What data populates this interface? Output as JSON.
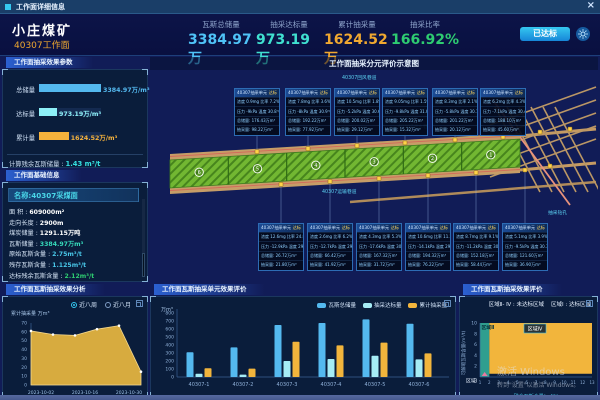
{
  "titlebar": {
    "title": "工作面详细信息",
    "close": "×"
  },
  "header": {
    "mine_name": "小庄煤矿",
    "face_name": "40307工作面",
    "kpis": [
      {
        "label": "瓦斯总储量",
        "value": "3384.97万",
        "color": "#4fc3f7"
      },
      {
        "label": "抽采达标量",
        "value": "973.19万",
        "color": "#40e0d0"
      },
      {
        "label": "累计抽采量",
        "value": "1624.52万",
        "color": "#f0a830"
      },
      {
        "label": "抽采比率",
        "value": "166.92%",
        "color": "#2ecc71"
      }
    ],
    "status_button": "已达标"
  },
  "params_panel": {
    "title": "工作面抽采效果参数",
    "bars": [
      {
        "label": "总储量",
        "value": "3384.97万/m³",
        "color": "#54b9ef",
        "pct": 100
      },
      {
        "label": "达标量",
        "value": "973.19万/m³",
        "color": "#8ef0f7",
        "pct": 29
      },
      {
        "label": "累计量",
        "value": "1624.52万/m³",
        "color": "#f5b23c",
        "pct": 48
      }
    ],
    "footer_label": "计算残余瓦斯储量 : ",
    "footer_value": "1.43 m³/t"
  },
  "info_panel": {
    "title": "工作面基础信息",
    "name": "名称:40307采煤面",
    "rows": [
      {
        "label": "面  积",
        "value": "609000m²",
        "color": "#ffffff"
      },
      {
        "label": "走向长度",
        "value": "2900m",
        "color": "#ffffff"
      },
      {
        "label": "煤炭储量",
        "value": "1291.15万吨",
        "color": "#ffffff"
      },
      {
        "label": "瓦斯储量",
        "value": "3384.97万m³",
        "color": "#35d8b9"
      },
      {
        "label": "原始瓦斯含量",
        "value": "2.75m³/t",
        "color": "#49c7e8"
      },
      {
        "label": "残存瓦斯含量",
        "value": "1.125m³/t",
        "color": "#49c7e8"
      },
      {
        "label": "达标残余瓦斯含量",
        "value": "2.12m³/t",
        "color": "#2ecc71"
      }
    ]
  },
  "trend_panel": {
    "title": "工作面瓦斯抽采效果分析",
    "radios": [
      {
        "label": "近八周",
        "selected": true
      },
      {
        "label": "近八月",
        "selected": false
      }
    ]
  },
  "diagram": {
    "title": "工作面抽采分元评价示意图",
    "labels": {
      "return_airway": "40307回风巷道",
      "drain_roadway": "40307泄水巷",
      "transport_roadway": "40307运输巷道",
      "drill_holes": "抽采钻孔"
    },
    "sections": [
      "6",
      "5",
      "4",
      "3",
      "2",
      "1"
    ],
    "cards_top": [
      {
        "title": "40307抽采单元",
        "tag": "达标",
        "rows": [
          "浓度 0.9mg 比率 7.2%",
          "压力 -9kPa 温度 30.8℃",
          "总储量: 176.43万m³",
          "抽采量: 98.22万m³"
        ]
      },
      {
        "title": "40307抽采单元",
        "tag": "达标",
        "rows": [
          "浓度 7.8mg 比率 3.6%",
          "压力 -8kPa 温度 30.9℃",
          "总储量: 192.22万m³",
          "抽采量: 77.92万m³"
        ]
      },
      {
        "title": "40307抽采单元",
        "tag": "达标",
        "rows": [
          "浓度 10.5mg 比率 1.8%",
          "压力 -5.2kPa 温度 30.6℃",
          "总储量: 200.02万m³",
          "抽采量: 29.12万m³"
        ]
      },
      {
        "title": "40307抽采单元",
        "tag": "达标",
        "rows": [
          "浓度 9.05mg 比率 1.5%",
          "压力 -9.8kPa 温度 31.0℃",
          "总储量: 205.22万m³",
          "抽采量: 15.32万m³"
        ]
      },
      {
        "title": "40307抽采单元",
        "tag": "达标",
        "rows": [
          "浓度 8.3mg 比率 2.1%",
          "压力 -5.8kPa 温度 30.1℃",
          "总储量: 201.22万m³",
          "抽采量: 20.12万m³"
        ]
      },
      {
        "title": "40307抽采单元",
        "tag": "达标",
        "rows": [
          "浓度 6.2mg 比率 4.3%",
          "压力 -7.1kPa 温度 30.4℃",
          "总储量: 188.10万m³",
          "抽采量: 45.60万m³"
        ]
      }
    ],
    "cards_bottom": [
      {
        "title": "40307抽采单元",
        "tag": "达标",
        "rows": [
          "浓度 12.6mg 比率 24.8%",
          "压力 -12.9kPa 温度 29.6℃",
          "总储量: 26.72万m³",
          "抽采量: 21.80万m³"
        ]
      },
      {
        "title": "40307抽采单元",
        "tag": "达标",
        "rows": [
          "浓度 2.6mg 比率 6.2%",
          "压力 -12.7kPa 温度 29.8℃",
          "总储量: 66.42万m³",
          "抽采量: 41.92万m³"
        ]
      },
      {
        "title": "40307抽采单元",
        "tag": "达标",
        "rows": [
          "浓度 4.3mg 比率 5.3%",
          "压力 -17.6kPa 温度 30.2℃",
          "总储量: 167.32万m³",
          "抽采量: 31.72万m³"
        ]
      },
      {
        "title": "40307抽采单元",
        "tag": "达标",
        "rows": [
          "浓度 10.6mg 比率 11.2%",
          "压力 -14.1kPa 温度 29.9℃",
          "总储量: 194.32万m³",
          "抽采量: 76.22万m³"
        ]
      },
      {
        "title": "40307抽采单元",
        "tag": "达标",
        "rows": [
          "浓度 8.7mg 比率 9.1%",
          "压力 -11.2kPa 温度 30.0℃",
          "总储量: 152.18万m³",
          "抽采量: 58.44万m³"
        ]
      },
      {
        "title": "40307抽采单元",
        "tag": "达标",
        "rows": [
          "浓度 5.1mg 比率 3.9%",
          "压力 -9.5kPa 温度 30.3℃",
          "总储量: 121.60万m³",
          "抽采量: 36.90万m³"
        ]
      }
    ]
  },
  "units_panel": {
    "title": "工作面瓦斯抽采单元效果评价"
  },
  "eval_panel": {
    "title": "工作面瓦斯抽采效果评价",
    "legend_a": "区域Ⅱ- Ⅳ : 未达标区域",
    "legend_b": "区域Ⅰ : 达标区域"
  },
  "watermark": {
    "line1": "激活 Windows",
    "line2": "转到\"设置\"以激活 Windows。"
  },
  "chart_data": [
    {
      "id": "trend",
      "type": "area",
      "title": "工作面瓦斯抽采效果分析",
      "ylabel": "累计抽采量 万m³",
      "x": [
        "2023-10-02",
        "2023-10-09",
        "2023-10-16",
        "2023-10-23",
        "2023-10-30",
        "2023-11-06"
      ],
      "tick_indices": [
        0,
        2,
        4
      ],
      "xticks": [
        "2023-10-02",
        "2023-10-16",
        "2023-10-30"
      ],
      "values": [
        61,
        57,
        56,
        63,
        67,
        15
      ],
      "ylim": [
        0,
        70
      ],
      "yticks": [
        0,
        10,
        20,
        30,
        40,
        50,
        60,
        70
      ],
      "color": "#e9b740"
    },
    {
      "id": "units",
      "type": "bar",
      "title": "工作面瓦斯抽采单元效果评价",
      "unit": "万m³",
      "categories": [
        "40307-1",
        "40307-2",
        "40307-3",
        "40307-4",
        "40307-5",
        "40307-6"
      ],
      "series": [
        {
          "name": "瓦斯总储量",
          "color": "#54b9ef",
          "values": [
            310,
            370,
            650,
            675,
            720,
            665
          ]
        },
        {
          "name": "抽采达标量",
          "color": "#a5ecf5",
          "values": [
            40,
            30,
            200,
            225,
            265,
            220
          ]
        },
        {
          "name": "累计抽采量",
          "color": "#f2b53c",
          "values": [
            110,
            105,
            440,
            395,
            430,
            295
          ]
        }
      ],
      "ylim": [
        0,
        800
      ],
      "yticks": [
        0,
        100,
        200,
        300,
        400,
        500,
        600,
        700,
        800
      ],
      "legend_position": "top-right"
    },
    {
      "id": "eval",
      "type": "area",
      "title": "工作面瓦斯抽采效果评价",
      "xlabel": "残余瓦斯含量(m³/t)",
      "ylabel": "可解吸瓦斯含量(m³/t)",
      "xlim": [
        1,
        13
      ],
      "ylim": [
        0,
        10
      ],
      "yticks": [
        2,
        4,
        6,
        8,
        10
      ],
      "xticks": [
        1,
        2,
        3,
        4,
        5,
        6,
        7,
        8,
        9,
        10,
        11,
        12,
        13
      ],
      "regions": [
        {
          "name": "区域Ⅱ",
          "x": [
            1,
            2
          ],
          "y": [
            0,
            10
          ],
          "color": "#2f9e8f"
        },
        {
          "name": "区域Ⅳ",
          "x": [
            2,
            13
          ],
          "y": [
            0.6,
            10
          ],
          "color": "#f2b53c"
        },
        {
          "name": "区域Ⅰ",
          "x": [
            1,
            2
          ],
          "y": [
            0,
            0.6
          ],
          "color": "transparent"
        }
      ],
      "marker": {
        "x": 1.5,
        "y": 0.3,
        "color": "#e879a0"
      }
    }
  ]
}
